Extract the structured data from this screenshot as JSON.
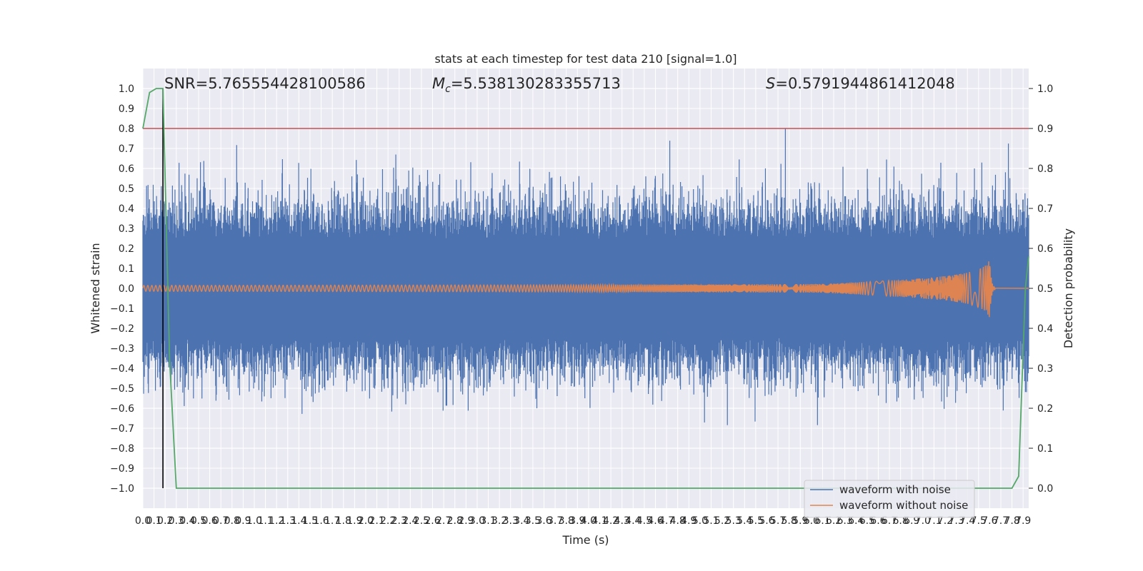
{
  "chart_data": {
    "type": "line",
    "title": "stats at each timestep for test data 210 [signal=1.0]",
    "xlabel": "Time (s)",
    "ylabel_left": "Whitened strain",
    "ylabel_right": "Detection probability",
    "xlim": [
      0.0,
      7.95
    ],
    "ylim_left": [
      -1.1,
      1.1
    ],
    "ylim_right": [
      0.0,
      1.0
    ],
    "x_ticks": [
      "0.0",
      "0.1",
      "0.2",
      "0.3",
      "0.4",
      "0.5",
      "0.6",
      "0.7",
      "0.8",
      "0.9",
      "1.0",
      "1.1",
      "1.2",
      "1.3",
      "1.4",
      "1.5",
      "1.6",
      "1.7",
      "1.8",
      "1.9",
      "2.0",
      "2.1",
      "2.2",
      "2.3",
      "2.4",
      "2.5",
      "2.6",
      "2.7",
      "2.8",
      "2.9",
      "3.0",
      "3.1",
      "3.2",
      "3.3",
      "3.4",
      "3.5",
      "3.6",
      "3.7",
      "3.8",
      "3.9",
      "4.0",
      "4.1",
      "4.2",
      "4.3",
      "4.4",
      "4.5",
      "4.6",
      "4.7",
      "4.8",
      "4.9",
      "5.0",
      "5.1",
      "5.2",
      "5.3",
      "5.4",
      "5.5",
      "5.6",
      "5.7",
      "5.8",
      "5.9",
      "6.0",
      "6.1",
      "6.2",
      "6.3",
      "6.4",
      "6.5",
      "6.6",
      "6.7",
      "6.8",
      "6.9",
      "7.0",
      "7.1",
      "7.2",
      "7.3",
      "7.4",
      "7.5",
      "7.6",
      "7.7",
      "7.8",
      "7.9"
    ],
    "y_ticks_left": [
      "1.0",
      "0.9",
      "0.8",
      "0.7",
      "0.6",
      "0.5",
      "0.4",
      "0.3",
      "0.2",
      "0.1",
      "0.0",
      "−0.1",
      "−0.2",
      "−0.3",
      "−0.4",
      "−0.5",
      "−0.6",
      "−0.7",
      "−0.8",
      "−0.9",
      "−1.0"
    ],
    "y_ticks_right": [
      "1.0",
      "0.9",
      "0.8",
      "0.7",
      "0.6",
      "0.5",
      "0.4",
      "0.3",
      "0.2",
      "0.1",
      "0.0"
    ],
    "annotations": {
      "snr": "SNR=5.765554428100586",
      "mc_symbol": "M",
      "mc_sub": "c",
      "mc_value": "=5.538130283355713",
      "s_symbol": "S",
      "s_value": "=0.5791944861412048"
    },
    "threshold_left": 0.8,
    "marker_x": 0.18,
    "grid": true,
    "legend_position": "lower right",
    "series": [
      {
        "name": "waveform with noise",
        "color": "#4c72b0",
        "axis": "left",
        "kind": "noise",
        "typical_peak": 0.45,
        "max_abs": 1.0
      },
      {
        "name": "waveform without noise",
        "color": "#dd8452",
        "axis": "left",
        "kind": "chirp",
        "start_amplitude": 0.015,
        "peak_amplitude": 0.17,
        "merger_time": 7.6
      },
      {
        "name": "",
        "color": "#55a868",
        "axis": "right",
        "x": [
          0.0,
          0.06,
          0.12,
          0.18,
          0.24,
          0.3,
          7.8,
          7.86,
          7.92,
          7.95
        ],
        "y": [
          0.9,
          0.99,
          1.0,
          1.0,
          0.32,
          0.0,
          0.0,
          0.03,
          0.5,
          0.58
        ]
      }
    ],
    "threshold_color": "#c44e52",
    "marker_color": "#000000"
  }
}
